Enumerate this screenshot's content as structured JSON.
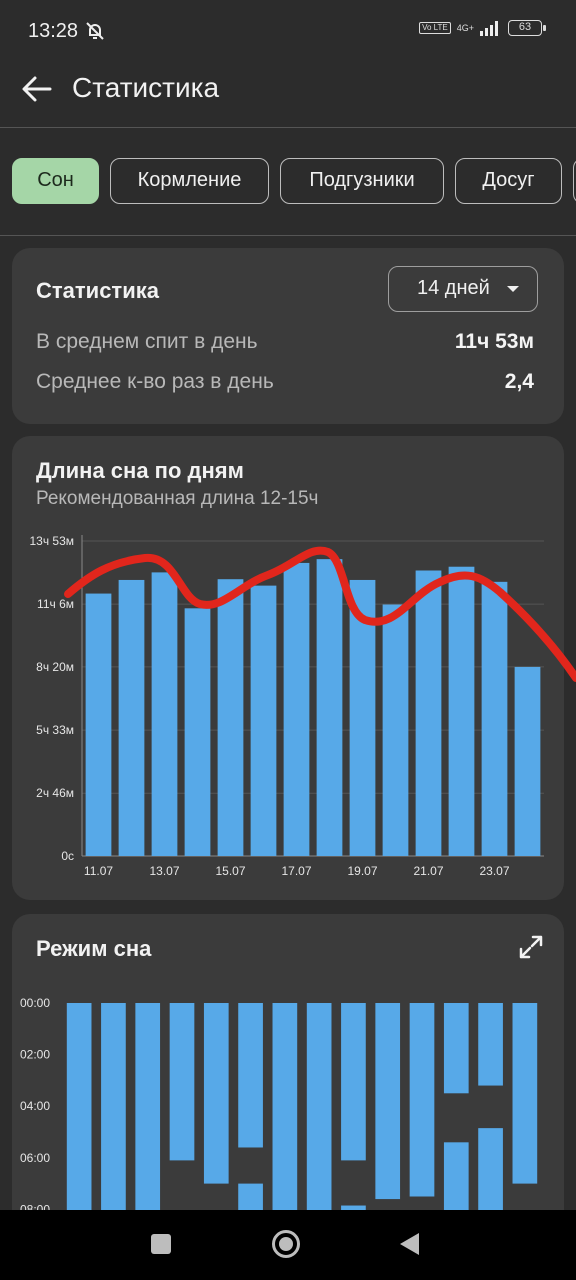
{
  "status_bar": {
    "time": "13:28",
    "volte": "Vo LTE",
    "network": "4G+",
    "battery": "63"
  },
  "app_bar": {
    "title": "Статистика",
    "back_icon": "arrow-left-icon"
  },
  "tabs": [
    {
      "label": "Сон",
      "active": true
    },
    {
      "label": "Кормление",
      "active": false
    },
    {
      "label": "Подгузники",
      "active": false
    },
    {
      "label": "Досуг",
      "active": false
    }
  ],
  "stats_card": {
    "title": "Статистика",
    "period": "14 дней",
    "rows": [
      {
        "label": "В среднем спит в день",
        "value": "11ч 53м"
      },
      {
        "label": "Среднее к-во раз в день",
        "value": "2,4"
      }
    ]
  },
  "chart_data": [
    {
      "type": "bar",
      "title": "Длина сна по дням",
      "subtitle": "Рекомендованная длина 12-15ч",
      "y_tick_labels": [
        "13ч 53м",
        "11ч 6м",
        "8ч 20м",
        "5ч 33м",
        "2ч 46м",
        "0с"
      ],
      "y_ticks_minutes": [
        833,
        666,
        500,
        333,
        166,
        0
      ],
      "ylim_minutes": [
        0,
        833
      ],
      "x_tick_labels": [
        "11.07",
        "13.07",
        "15.07",
        "17.07",
        "19.07",
        "21.07",
        "23.07"
      ],
      "categories": [
        "11.07",
        "12.07",
        "13.07",
        "14.07",
        "15.07",
        "16.07",
        "17.07",
        "18.07",
        "19.07",
        "20.07",
        "21.07",
        "22.07",
        "23.07",
        "24.07"
      ],
      "values_minutes": [
        694,
        730,
        750,
        655,
        732,
        715,
        775,
        785,
        730,
        665,
        755,
        765,
        725,
        500
      ],
      "bar_color": "#57a9e8",
      "grid": true
    },
    {
      "type": "bar",
      "title": "Режим сна",
      "y_tick_labels": [
        "00:00",
        "02:00",
        "04:00",
        "06:00",
        "08:00"
      ],
      "ylim_hours": [
        0,
        8
      ],
      "bar_color": "#57a9e8",
      "sleep_segments_hours": [
        [
          [
            0,
            8.2
          ]
        ],
        [
          [
            0,
            8.2
          ]
        ],
        [
          [
            0,
            8.2
          ]
        ],
        [
          [
            0,
            6.1
          ],
          [
            8.05,
            8.2
          ]
        ],
        [
          [
            0,
            7.0
          ]
        ],
        [
          [
            0,
            5.6
          ],
          [
            7.0,
            8.2
          ]
        ],
        [
          [
            0,
            8.2
          ]
        ],
        [
          [
            0,
            8.2
          ]
        ],
        [
          [
            0,
            6.1
          ],
          [
            7.85,
            8.2
          ]
        ],
        [
          [
            0,
            7.6
          ]
        ],
        [
          [
            0,
            7.5
          ]
        ],
        [
          [
            0,
            3.5
          ],
          [
            5.4,
            8.2
          ]
        ],
        [
          [
            0,
            3.2
          ],
          [
            4.85,
            8.2
          ]
        ],
        [
          [
            0,
            7.0
          ]
        ]
      ]
    }
  ],
  "sleep_mode_card": {
    "title": "Режим сна",
    "expand_icon": "expand-icon"
  },
  "nav": {
    "recent_icon": "square-icon",
    "home_icon": "circle-home-icon",
    "back_icon": "triangle-back-icon"
  }
}
